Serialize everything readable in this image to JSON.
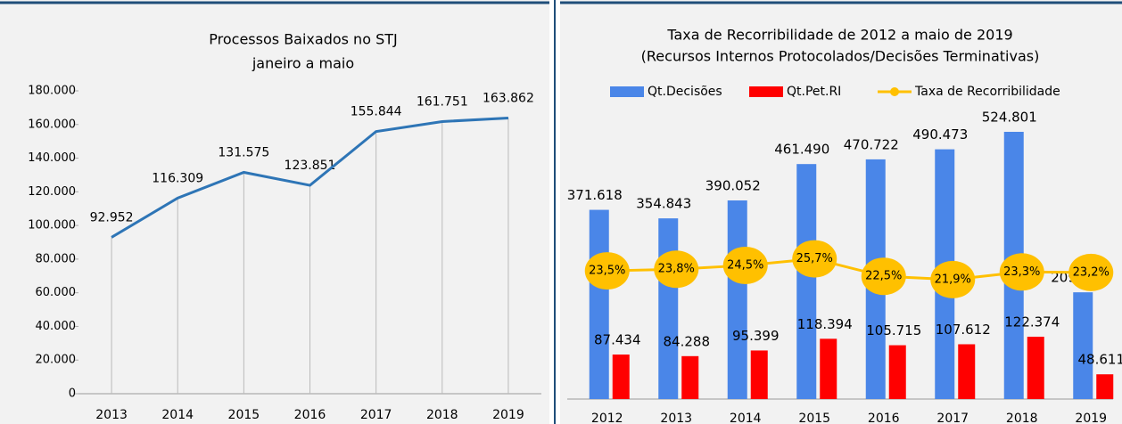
{
  "chart_data": [
    {
      "type": "line",
      "title": "Processos Baixados no STJ",
      "subtitle": "janeiro a maio",
      "categories": [
        "2013",
        "2014",
        "2015",
        "2016",
        "2017",
        "2018",
        "2019"
      ],
      "values": [
        92952,
        116309,
        131575,
        123851,
        155844,
        161751,
        163862
      ],
      "value_labels": [
        "92.952",
        "116.309",
        "131.575",
        "123.851",
        "155.844",
        "161.751",
        "163.862"
      ],
      "color": "#2e75b6",
      "ylim": [
        0,
        180000
      ],
      "yticks": [
        0,
        {
          "value": 20000,
          "label": "20.000"
        },
        {
          "value": 40000,
          "label": "40.000"
        },
        {
          "value": 60000,
          "label": "60.000"
        },
        {
          "value": 80000,
          "label": "80.000"
        },
        {
          "value": 100000,
          "label": "100.000"
        },
        {
          "value": 120000,
          "label": "120.000"
        },
        {
          "value": 140000,
          "label": "140.000"
        },
        {
          "value": 160000,
          "label": "160.000"
        },
        {
          "value": 180000,
          "label": "180.000"
        }
      ],
      "grid": "x"
    },
    {
      "type": "bar",
      "title": "Taxa de Recorribilidade de 2012 a maio de 2019",
      "subtitle": "(Recursos Internos Protocolados/Decisões Terminativas)",
      "categories": [
        "2012",
        "2013",
        "2014",
        "2015",
        "2016",
        "2017",
        "2018",
        "2019"
      ],
      "ylim": [
        0,
        600000
      ],
      "y2lim": [
        0,
        56
      ],
      "series": [
        {
          "name": "Qt.Decisões",
          "color": "#4a86e8",
          "values": [
            371618,
            354843,
            390052,
            461490,
            470722,
            490473,
            524801,
            209653
          ],
          "value_labels": [
            "371.618",
            "354.843",
            "390.052",
            "461.490",
            "470.722",
            "490.473",
            "524.801",
            "209.653"
          ]
        },
        {
          "name": "Qt.Pet.RI",
          "color": "#ff0000",
          "values": [
            87434,
            84288,
            95399,
            118394,
            105715,
            107612,
            122374,
            48611
          ],
          "value_labels": [
            "87.434",
            "84.288",
            "95.399",
            "118.394",
            "105.715",
            "107.612",
            "122.374",
            "48.611"
          ]
        },
        {
          "name": "Taxa de Recorribilidade",
          "color": "#ffc000",
          "axis": "y2",
          "type": "line",
          "values": [
            23.5,
            23.8,
            24.5,
            25.7,
            22.5,
            21.9,
            23.3,
            23.2
          ],
          "value_labels": [
            "23,5%",
            "23,8%",
            "24,5%",
            "25,7%",
            "22,5%",
            "21,9%",
            "23,3%",
            "23,2%"
          ]
        }
      ]
    }
  ]
}
